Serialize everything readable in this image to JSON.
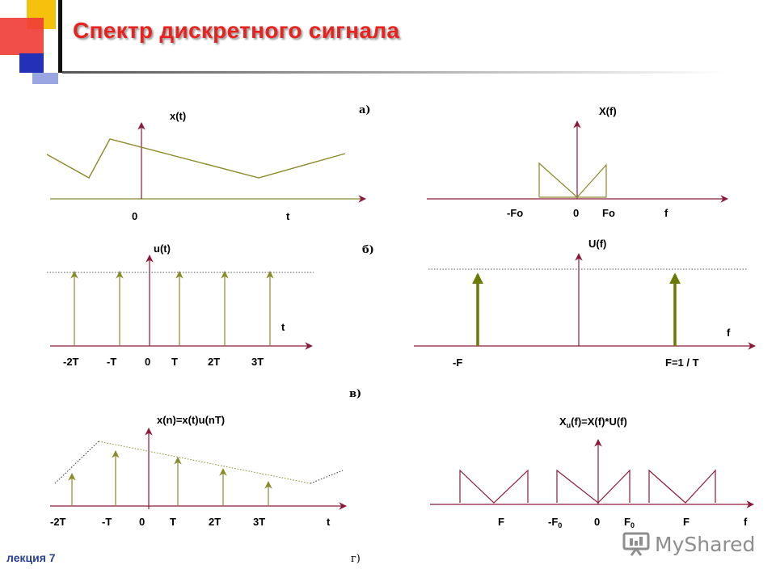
{
  "slide": {
    "title": "Спектр дискретного сигнала",
    "footer_left": "лекция 7",
    "footer_mid": "г)",
    "watermark": "MyShared"
  },
  "colors": {
    "title": "#e8231f",
    "axis": "#8b1a3a",
    "signal": "#8a8a2a",
    "dotted": "#555555"
  },
  "panels": {
    "a": {
      "caption": "а)",
      "x_label": "x(t)",
      "x_origin": "0",
      "x_axis": "t",
      "X_label": "X(f)",
      "X_ticks": [
        "-Fo",
        "0",
        "Fo",
        "f"
      ]
    },
    "b": {
      "caption": "б)",
      "u_label": "u(t)",
      "u_axis": "t",
      "u_ticks": [
        "-2T",
        "-T",
        "0",
        "T",
        "2T",
        "3T"
      ],
      "U_label": "U(f)",
      "U_axis": "f",
      "U_ticks": [
        "-F",
        "F=1 / T"
      ]
    },
    "c": {
      "caption": "в)",
      "xn_label": "x(n)=x(t)u(nT)",
      "xn_ticks": [
        "-2T",
        "-T",
        "0",
        "T",
        "2T",
        "3T",
        "t"
      ],
      "Xu_label_main": "X",
      "Xu_label_sub": "u",
      "Xu_label_rest": "(f)=X(f)*U(f)",
      "Xu_ticks": {
        "F_left": "F",
        "mF0": "-F",
        "mF0_sub": "0",
        "zero": "0",
        "F0": "F",
        "F0_sub": "0",
        "F_right": "F",
        "f": "f"
      }
    }
  }
}
